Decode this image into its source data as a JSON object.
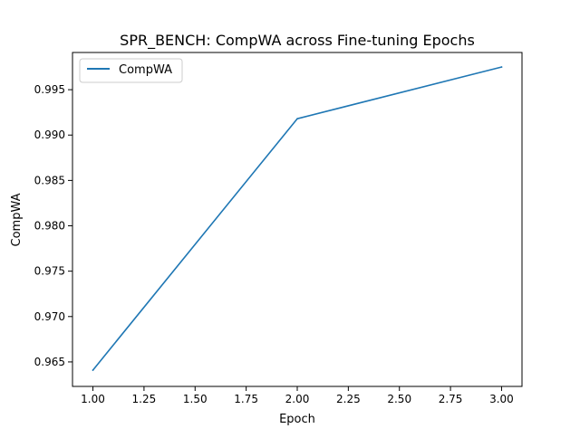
{
  "chart_data": {
    "type": "line",
    "title": "SPR_BENCH: CompWA across Fine-tuning Epochs",
    "xlabel": "Epoch",
    "ylabel": "CompWA",
    "xlim": [
      0.9,
      3.1
    ],
    "ylim": [
      0.9623,
      0.9991
    ],
    "x_ticks": [
      1.0,
      1.25,
      1.5,
      1.75,
      2.0,
      2.25,
      2.5,
      2.75,
      3.0
    ],
    "x_tick_labels": [
      "1.00",
      "1.25",
      "1.50",
      "1.75",
      "2.00",
      "2.25",
      "2.50",
      "2.75",
      "3.00"
    ],
    "y_ticks": [
      0.965,
      0.97,
      0.975,
      0.98,
      0.985,
      0.99,
      0.995
    ],
    "y_tick_labels": [
      "0.965",
      "0.970",
      "0.975",
      "0.980",
      "0.985",
      "0.990",
      "0.995"
    ],
    "grid": false,
    "legend_position": "upper-left",
    "series": [
      {
        "name": "CompWA",
        "color": "#1f77b4",
        "x": [
          1,
          2,
          3
        ],
        "y": [
          0.9641,
          0.9918,
          0.9975
        ]
      }
    ]
  }
}
